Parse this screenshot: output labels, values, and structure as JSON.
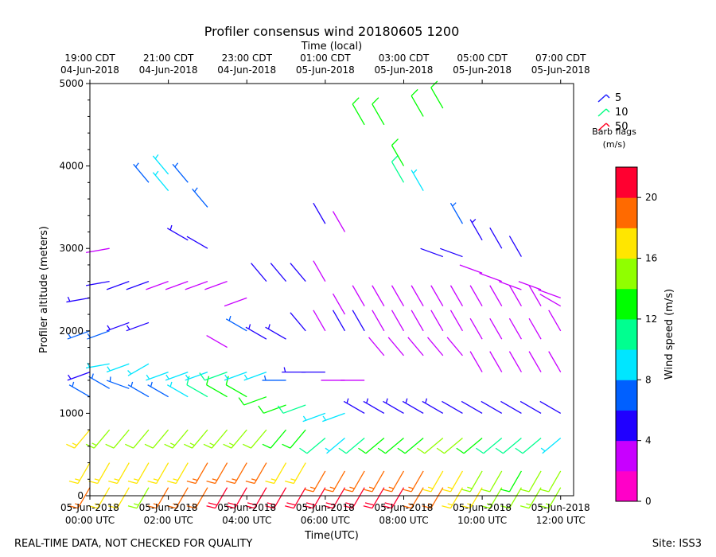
{
  "chart_data": {
    "type": "wind-barb-time-height",
    "title": "Profiler consensus wind 20180605 1200",
    "top_axis_label": "Time (local)",
    "xlabel": "Time(UTC)",
    "ylabel": "Profiler altitude (meters)",
    "xlim_hours_utc": [
      0,
      12.33
    ],
    "ylim": [
      0,
      5000
    ],
    "y_ticks": [
      "0",
      "1000",
      "2000",
      "3000",
      "4000",
      "5000"
    ],
    "y_tick_values": [
      0,
      1000,
      2000,
      3000,
      4000,
      5000
    ],
    "bottom_ticks": [
      {
        "hour": 0,
        "line1": "05-Jun-2018",
        "line2": "00:00 UTC"
      },
      {
        "hour": 2,
        "line1": "05-Jun-2018",
        "line2": "02:00 UTC"
      },
      {
        "hour": 4,
        "line1": "05-Jun-2018",
        "line2": "04:00 UTC"
      },
      {
        "hour": 6,
        "line1": "05-Jun-2018",
        "line2": "06:00 UTC"
      },
      {
        "hour": 8,
        "line1": "05-Jun-2018",
        "line2": "08:00 UTC"
      },
      {
        "hour": 10,
        "line1": "05-Jun-2018",
        "line2": "10:00 UTC"
      },
      {
        "hour": 12,
        "line1": "05-Jun-2018",
        "line2": "12:00 UTC"
      }
    ],
    "top_ticks": [
      {
        "hour": 0,
        "line1": "19:00 CDT",
        "line2": "04-Jun-2018"
      },
      {
        "hour": 2,
        "line1": "21:00 CDT",
        "line2": "04-Jun-2018"
      },
      {
        "hour": 4,
        "line1": "23:00 CDT",
        "line2": "04-Jun-2018"
      },
      {
        "hour": 6,
        "line1": "01:00 CDT",
        "line2": "05-Jun-2018"
      },
      {
        "hour": 8,
        "line1": "03:00 CDT",
        "line2": "05-Jun-2018"
      },
      {
        "hour": 10,
        "line1": "05:00 CDT",
        "line2": "05-Jun-2018"
      },
      {
        "hour": 12,
        "line1": "07:00 CDT",
        "line2": "05-Jun-2018"
      }
    ],
    "legend": {
      "title": "Barb flags",
      "units": "(m/s)",
      "entries": [
        {
          "label": "5",
          "color": "#1f1fff"
        },
        {
          "label": "10",
          "color": "#00ff80"
        },
        {
          "label": "50",
          "color": "#ff0020"
        }
      ]
    },
    "colorbar": {
      "label": "Wind speed (m/s)",
      "range": [
        0,
        22
      ],
      "ticks": [
        "0",
        "4",
        "8",
        "12",
        "16",
        "20"
      ],
      "tick_values": [
        0,
        4,
        8,
        12,
        16,
        20
      ],
      "colors": [
        "#ff00c8",
        "#c800ff",
        "#2000ff",
        "#0060ff",
        "#00e6ff",
        "#00ff90",
        "#00ff00",
        "#90ff00",
        "#ffe600",
        "#ff6a00",
        "#ff0030"
      ]
    },
    "barb_rows": [
      {
        "hour": 0.0,
        "samples": [
          [
            100,
            18,
            210
          ],
          [
            400,
            17,
            210
          ],
          [
            800,
            16,
            220
          ],
          [
            1200,
            6,
            300
          ],
          [
            1500,
            5,
            250
          ],
          [
            2000,
            6,
            250
          ],
          [
            2400,
            5,
            260
          ]
        ]
      },
      {
        "hour": 0.5,
        "samples": [
          [
            100,
            17,
            210
          ],
          [
            400,
            16,
            210
          ],
          [
            800,
            15,
            220
          ],
          [
            1300,
            7,
            300
          ],
          [
            1600,
            8,
            260
          ],
          [
            2000,
            6,
            250
          ],
          [
            2600,
            4,
            260
          ],
          [
            3000,
            3,
            260
          ]
        ]
      },
      {
        "hour": 1.0,
        "samples": [
          [
            100,
            16,
            210
          ],
          [
            400,
            16,
            210
          ],
          [
            800,
            14,
            220
          ],
          [
            1300,
            7,
            290
          ],
          [
            1600,
            8,
            250
          ],
          [
            2100,
            5,
            250
          ],
          [
            2600,
            4,
            250
          ]
        ]
      },
      {
        "hour": 1.5,
        "samples": [
          [
            100,
            15,
            210
          ],
          [
            400,
            16,
            210
          ],
          [
            800,
            14,
            220
          ],
          [
            1200,
            6,
            300
          ],
          [
            1600,
            9,
            240
          ],
          [
            2100,
            5,
            250
          ],
          [
            2600,
            4,
            250
          ],
          [
            3800,
            7,
            320
          ]
        ]
      },
      {
        "hour": 2.0,
        "samples": [
          [
            100,
            18,
            210
          ],
          [
            400,
            17,
            210
          ],
          [
            800,
            14,
            220
          ],
          [
            1200,
            7,
            300
          ],
          [
            1500,
            9,
            250
          ],
          [
            2600,
            3,
            250
          ],
          [
            3900,
            9,
            320
          ],
          [
            3700,
            8,
            320
          ]
        ]
      },
      {
        "hour": 2.5,
        "samples": [
          [
            100,
            18,
            210
          ],
          [
            400,
            17,
            210
          ],
          [
            800,
            15,
            220
          ],
          [
            1200,
            8,
            300
          ],
          [
            1500,
            9,
            250
          ],
          [
            2600,
            3,
            250
          ],
          [
            3100,
            5,
            300
          ],
          [
            3800,
            7,
            320
          ]
        ]
      },
      {
        "hour": 3.0,
        "samples": [
          [
            100,
            19,
            210
          ],
          [
            400,
            18,
            210
          ],
          [
            800,
            15,
            220
          ],
          [
            1200,
            10,
            300
          ],
          [
            1500,
            9,
            250
          ],
          [
            2600,
            3,
            250
          ],
          [
            3000,
            4,
            300
          ],
          [
            3500,
            6,
            320
          ]
        ]
      },
      {
        "hour": 3.5,
        "samples": [
          [
            100,
            20,
            210
          ],
          [
            400,
            18,
            210
          ],
          [
            800,
            15,
            220
          ],
          [
            1200,
            12,
            300
          ],
          [
            1500,
            10,
            250
          ],
          [
            1800,
            3,
            300
          ],
          [
            2600,
            3,
            250
          ]
        ]
      },
      {
        "hour": 4.0,
        "samples": [
          [
            100,
            21,
            210
          ],
          [
            400,
            18,
            210
          ],
          [
            800,
            15,
            220
          ],
          [
            1200,
            12,
            300
          ],
          [
            1500,
            9,
            250
          ],
          [
            2000,
            6,
            300
          ],
          [
            2400,
            3,
            250
          ]
        ]
      },
      {
        "hour": 4.5,
        "samples": [
          [
            100,
            21,
            210
          ],
          [
            400,
            18,
            210
          ],
          [
            800,
            14,
            220
          ],
          [
            1200,
            12,
            250
          ],
          [
            1500,
            9,
            250
          ],
          [
            1900,
            5,
            300
          ],
          [
            2600,
            4,
            320
          ]
        ]
      },
      {
        "hour": 5.0,
        "samples": [
          [
            100,
            21,
            210
          ],
          [
            400,
            17,
            210
          ],
          [
            800,
            13,
            220
          ],
          [
            1100,
            12,
            250
          ],
          [
            1400,
            7,
            270
          ],
          [
            1900,
            5,
            300
          ],
          [
            2600,
            4,
            320
          ]
        ]
      },
      {
        "hour": 5.5,
        "samples": [
          [
            100,
            21,
            210
          ],
          [
            400,
            17,
            210
          ],
          [
            800,
            12,
            220
          ],
          [
            1100,
            10,
            250
          ],
          [
            1500,
            5,
            270
          ],
          [
            2000,
            4,
            320
          ],
          [
            2600,
            4,
            320
          ]
        ]
      },
      {
        "hour": 6.0,
        "samples": [
          [
            100,
            21,
            210
          ],
          [
            300,
            18,
            210
          ],
          [
            700,
            10,
            230
          ],
          [
            1000,
            8,
            250
          ],
          [
            1500,
            4,
            270
          ],
          [
            2000,
            3,
            330
          ],
          [
            2600,
            3,
            330
          ],
          [
            3300,
            4,
            330
          ]
        ]
      },
      {
        "hour": 6.5,
        "samples": [
          [
            100,
            22,
            210
          ],
          [
            300,
            19,
            210
          ],
          [
            700,
            9,
            230
          ],
          [
            1000,
            8,
            250
          ],
          [
            1400,
            2,
            270
          ],
          [
            2000,
            4,
            330
          ],
          [
            2200,
            3,
            330
          ],
          [
            3200,
            3,
            330
          ]
        ]
      },
      {
        "hour": 7.0,
        "samples": [
          [
            100,
            22,
            210
          ],
          [
            300,
            19,
            210
          ],
          [
            700,
            10,
            230
          ],
          [
            1000,
            5,
            300
          ],
          [
            1400,
            2,
            270
          ],
          [
            2000,
            4,
            330
          ],
          [
            2300,
            2,
            330
          ],
          [
            4500,
            12,
            330
          ]
        ]
      },
      {
        "hour": 7.5,
        "samples": [
          [
            100,
            21,
            210
          ],
          [
            300,
            19,
            210
          ],
          [
            700,
            12,
            230
          ],
          [
            1000,
            5,
            300
          ],
          [
            1700,
            3,
            320
          ],
          [
            2000,
            3,
            330
          ],
          [
            2300,
            2,
            330
          ],
          [
            4500,
            13,
            330
          ]
        ]
      },
      {
        "hour": 8.0,
        "samples": [
          [
            100,
            20,
            210
          ],
          [
            300,
            18,
            210
          ],
          [
            700,
            12,
            230
          ],
          [
            1000,
            5,
            300
          ],
          [
            1700,
            3,
            320
          ],
          [
            2000,
            2,
            330
          ],
          [
            2300,
            2,
            330
          ],
          [
            3800,
            10,
            330
          ],
          [
            4000,
            12,
            330
          ]
        ]
      },
      {
        "hour": 8.5,
        "samples": [
          [
            100,
            19,
            210
          ],
          [
            300,
            18,
            210
          ],
          [
            700,
            13,
            230
          ],
          [
            1000,
            5,
            300
          ],
          [
            1700,
            2,
            320
          ],
          [
            2000,
            2,
            330
          ],
          [
            2300,
            2,
            330
          ],
          [
            3700,
            9,
            330
          ],
          [
            4600,
            13,
            330
          ]
        ]
      },
      {
        "hour": 9.0,
        "samples": [
          [
            100,
            18,
            210
          ],
          [
            300,
            17,
            210
          ],
          [
            700,
            14,
            230
          ],
          [
            1000,
            5,
            300
          ],
          [
            1700,
            2,
            320
          ],
          [
            2000,
            2,
            330
          ],
          [
            2300,
            2,
            330
          ],
          [
            2900,
            4,
            290
          ],
          [
            4700,
            13,
            330
          ]
        ]
      },
      {
        "hour": 9.5,
        "samples": [
          [
            100,
            17,
            210
          ],
          [
            300,
            16,
            210
          ],
          [
            700,
            14,
            230
          ],
          [
            1000,
            4,
            300
          ],
          [
            1700,
            2,
            320
          ],
          [
            2000,
            2,
            330
          ],
          [
            2300,
            2,
            330
          ],
          [
            2900,
            4,
            290
          ],
          [
            3300,
            7,
            330
          ]
        ]
      },
      {
        "hour": 10.0,
        "samples": [
          [
            100,
            16,
            210
          ],
          [
            300,
            15,
            210
          ],
          [
            700,
            12,
            230
          ],
          [
            1000,
            4,
            300
          ],
          [
            1500,
            2,
            330
          ],
          [
            1900,
            2,
            330
          ],
          [
            2300,
            2,
            330
          ],
          [
            2700,
            3,
            290
          ],
          [
            3100,
            5,
            330
          ]
        ]
      },
      {
        "hour": 10.5,
        "samples": [
          [
            100,
            15,
            210
          ],
          [
            300,
            14,
            210
          ],
          [
            700,
            10,
            230
          ],
          [
            1000,
            4,
            300
          ],
          [
            1500,
            2,
            330
          ],
          [
            1900,
            2,
            330
          ],
          [
            2300,
            2,
            330
          ],
          [
            2600,
            3,
            290
          ],
          [
            3000,
            4,
            330
          ]
        ]
      },
      {
        "hour": 11.0,
        "samples": [
          [
            100,
            14,
            210
          ],
          [
            300,
            13,
            210
          ],
          [
            700,
            10,
            230
          ],
          [
            1000,
            4,
            300
          ],
          [
            1500,
            2,
            330
          ],
          [
            1900,
            2,
            330
          ],
          [
            2300,
            2,
            330
          ],
          [
            2500,
            3,
            290
          ],
          [
            2900,
            4,
            330
          ]
        ]
      },
      {
        "hour": 11.5,
        "samples": [
          [
            100,
            15,
            210
          ],
          [
            300,
            14,
            210
          ],
          [
            700,
            10,
            230
          ],
          [
            1000,
            4,
            300
          ],
          [
            1500,
            2,
            330
          ],
          [
            1900,
            3,
            330
          ],
          [
            2300,
            2,
            330
          ],
          [
            2500,
            3,
            290
          ]
        ]
      },
      {
        "hour": 12.0,
        "samples": [
          [
            100,
            15,
            210
          ],
          [
            300,
            14,
            210
          ],
          [
            700,
            9,
            230
          ],
          [
            1000,
            4,
            300
          ],
          [
            1500,
            2,
            330
          ],
          [
            2000,
            3,
            330
          ],
          [
            2300,
            2,
            300
          ],
          [
            2400,
            3,
            290
          ]
        ]
      }
    ]
  },
  "footer": {
    "disclaimer": "REAL-TIME DATA, NOT CHECKED FOR QUALITY",
    "site": "Site: ISS3"
  }
}
